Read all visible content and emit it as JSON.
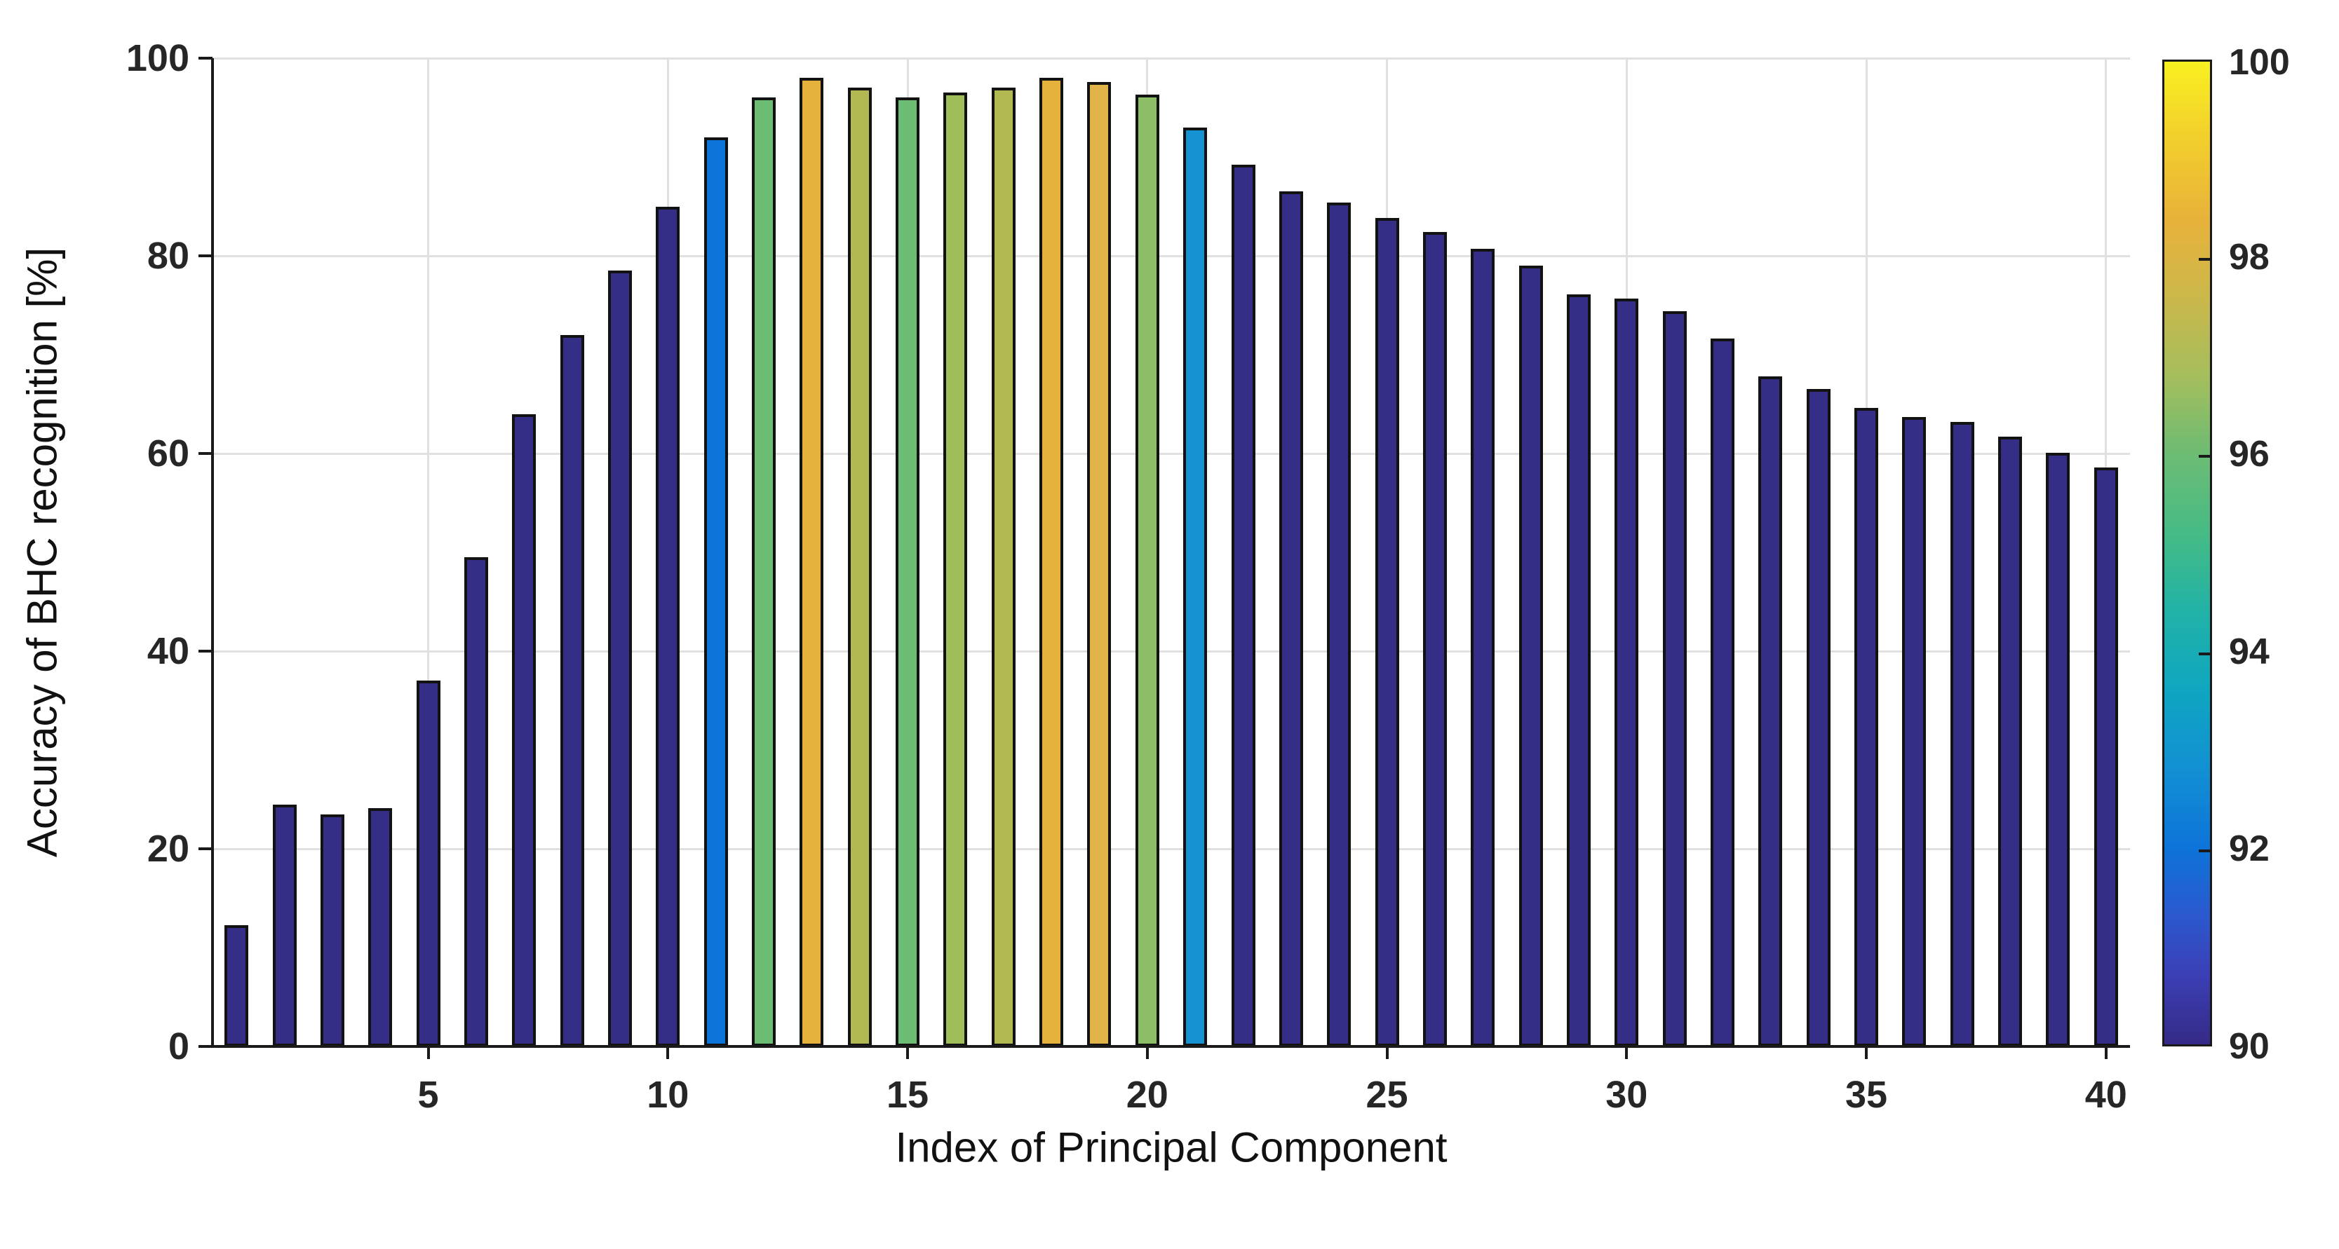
{
  "figure": {
    "background": "#ffffff",
    "axis_color": "#1a1a1a",
    "grid_color": "#e0e0e0",
    "tick_label_color": "#262626",
    "bar_edge_color": "#121212",
    "navy_bar_color": "#352e87"
  },
  "chart_data": {
    "type": "bar",
    "title": "",
    "xlabel": "Index of Principal Component",
    "ylabel": "Accuracy of BHC recognition [%]",
    "x": [
      1,
      2,
      3,
      4,
      5,
      6,
      7,
      8,
      9,
      10,
      11,
      12,
      13,
      14,
      15,
      16,
      17,
      18,
      19,
      20,
      21,
      22,
      23,
      24,
      25,
      26,
      27,
      28,
      29,
      30,
      31,
      32,
      33,
      34,
      35,
      36,
      37,
      38,
      39,
      40
    ],
    "values": [
      12.3,
      24.5,
      23.5,
      24.1,
      37,
      49.5,
      64,
      72,
      78.5,
      85,
      92,
      96,
      98,
      97,
      96,
      96.5,
      97,
      98,
      97.6,
      96.3,
      93,
      89.2,
      86.5,
      85.4,
      83.8,
      82.4,
      80.7,
      79,
      76.1,
      75.7,
      74.4,
      71.6,
      67.8,
      66.5,
      64.6,
      63.7,
      63.2,
      61.7,
      60.1,
      58.6
    ],
    "bar_colors": [
      "#352e87",
      "#352e87",
      "#352e87",
      "#352e87",
      "#352e87",
      "#352e87",
      "#352e87",
      "#352e87",
      "#352e87",
      "#352e87",
      "#0c74d9",
      "#6dbc74",
      "#e5b23c",
      "#b2b852",
      "#6dbc74",
      "#9fbe5a",
      "#b2b852",
      "#e5b23c",
      "#e0b449",
      "#8cbe67",
      "#1592d2",
      "#352e87",
      "#352e87",
      "#352e87",
      "#352e87",
      "#352e87",
      "#352e87",
      "#352e87",
      "#352e87",
      "#352e87",
      "#352e87",
      "#352e87",
      "#352e87",
      "#352e87",
      "#352e87",
      "#352e87",
      "#352e87",
      "#352e87",
      "#352e87",
      "#352e87"
    ],
    "xlim": [
      0.5,
      40.5
    ],
    "ylim": [
      0,
      100
    ],
    "xticks": [
      "5",
      "10",
      "15",
      "20",
      "25",
      "30",
      "35",
      "40"
    ],
    "xtick_positions": [
      5,
      10,
      15,
      20,
      25,
      30,
      35,
      40
    ],
    "yticks": [
      "0",
      "20",
      "40",
      "60",
      "80",
      "100"
    ],
    "ytick_positions": [
      0,
      20,
      40,
      60,
      80,
      100
    ],
    "grid": true,
    "legend": null,
    "colorbar": {
      "min": 90,
      "max": 100,
      "tick_labels": [
        "90",
        "92",
        "94",
        "96",
        "98",
        "100"
      ],
      "tick_values": [
        90,
        92,
        94,
        96,
        98,
        100
      ],
      "gradient_bottom_to_top": [
        {
          "at": 0.0,
          "color": "#352a87"
        },
        {
          "at": 0.07,
          "color": "#3b3fb5"
        },
        {
          "at": 0.13,
          "color": "#2c58ce"
        },
        {
          "at": 0.2,
          "color": "#0d74d9"
        },
        {
          "at": 0.28,
          "color": "#1290d3"
        },
        {
          "at": 0.36,
          "color": "#0fa6c1"
        },
        {
          "at": 0.44,
          "color": "#21b2a7"
        },
        {
          "at": 0.52,
          "color": "#46bb85"
        },
        {
          "at": 0.6,
          "color": "#6dbc74"
        },
        {
          "at": 0.68,
          "color": "#a5be5c"
        },
        {
          "at": 0.76,
          "color": "#cbb84b"
        },
        {
          "at": 0.84,
          "color": "#e8b23a"
        },
        {
          "at": 0.92,
          "color": "#f2ce2c"
        },
        {
          "at": 1.0,
          "color": "#f9f021"
        }
      ]
    }
  }
}
